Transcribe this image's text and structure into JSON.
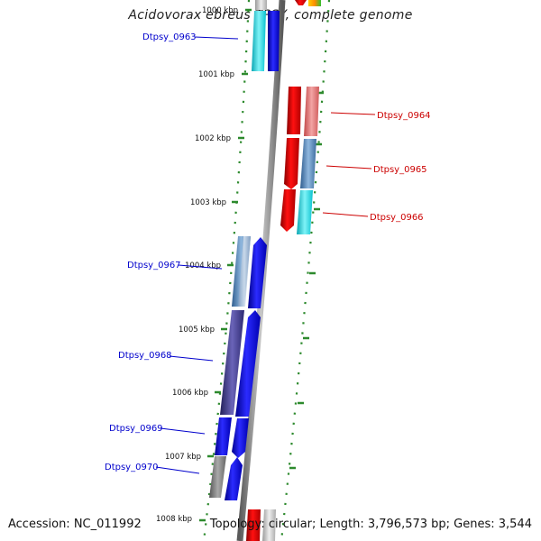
{
  "title": "Acidovorax ebreus TPSY, complete genome",
  "accession": "Accession: NC_011992",
  "topology": "Topology: circular; Length: 3,796,573 bp; Genes: 3,544",
  "scale_labels": [
    "1000 kbp",
    "1001 kbp",
    "1002 kbp",
    "1003 kbp",
    "1004 kbp",
    "1005 kbp",
    "1006 kbp",
    "1007 kbp",
    "1008 kbp"
  ],
  "genes": [
    {
      "label": "Dtpsy_0963",
      "color": "#0000cc"
    },
    {
      "label": "Dtpsy_0964",
      "color": "#cc0000"
    },
    {
      "label": "Dtpsy_0965",
      "color": "#cc0000"
    },
    {
      "label": "Dtpsy_0966",
      "color": "#cc0000"
    },
    {
      "label": "Dtpsy_0967",
      "color": "#0000cc"
    },
    {
      "label": "Dtpsy_0968",
      "color": "#0000cc"
    },
    {
      "label": "Dtpsy_0969",
      "color": "#0000cc"
    },
    {
      "label": "Dtpsy_0970",
      "color": "#0000cc"
    }
  ]
}
